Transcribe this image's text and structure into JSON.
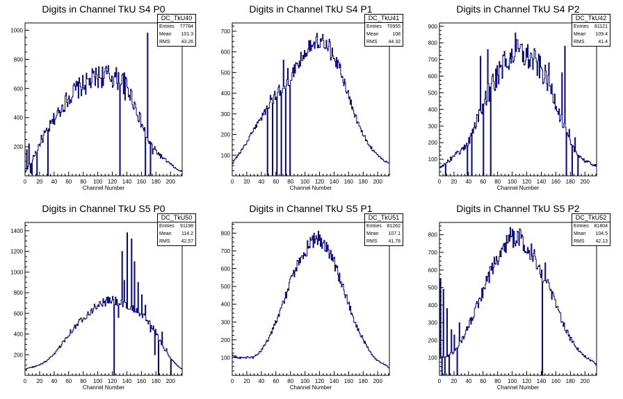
{
  "figure": {
    "background": "#ffffff",
    "line_color": "#000080",
    "stat_labels": {
      "entries": "Entries",
      "mean": "Mean",
      "rms": "RMS"
    }
  },
  "chart_data": [
    {
      "type": "histogram",
      "title": "Digits in Channel TkU S4 P0",
      "xlabel": "Channel Number",
      "ylabel": "",
      "xlim": [
        0,
        216
      ],
      "ylim": [
        0,
        1050
      ],
      "xticks": [
        0,
        20,
        40,
        60,
        80,
        100,
        120,
        140,
        160,
        180,
        200
      ],
      "yticks": [
        200,
        400,
        600,
        800,
        1000
      ],
      "stats": {
        "name": "DC_TkU40",
        "entries": "77784",
        "mean": "101.3",
        "rms": "43.26"
      },
      "shape": {
        "type": "arch",
        "x": [
          0,
          10,
          20,
          30,
          40,
          50,
          60,
          70,
          80,
          90,
          100,
          110,
          120,
          130,
          140,
          150,
          160,
          170,
          180,
          190,
          200,
          210,
          216
        ],
        "y": [
          20,
          110,
          220,
          300,
          390,
          470,
          540,
          590,
          620,
          650,
          680,
          690,
          680,
          660,
          620,
          500,
          360,
          240,
          170,
          120,
          80,
          40,
          30
        ]
      },
      "overrides": [
        {
          "x": 2,
          "y": 180
        },
        {
          "x": 5,
          "y": 220
        },
        {
          "x": 7,
          "y": 20
        },
        {
          "x": 9,
          "y": 10
        },
        {
          "x": 16,
          "y": 0
        },
        {
          "x": 22,
          "y": 280
        },
        {
          "x": 26,
          "y": 310
        },
        {
          "x": 31,
          "y": 0
        },
        {
          "x": 47,
          "y": 450
        },
        {
          "x": 130,
          "y": 0
        },
        {
          "x": 137,
          "y": 520
        },
        {
          "x": 165,
          "y": 0
        },
        {
          "x": 168,
          "y": 980
        },
        {
          "x": 172,
          "y": 0
        },
        {
          "x": 175,
          "y": 150
        }
      ],
      "noise": 0.12
    },
    {
      "type": "histogram",
      "title": "Digits in Channel TkU S4 P1",
      "xlabel": "Channel Number",
      "ylabel": "",
      "xlim": [
        0,
        216
      ],
      "ylim": [
        0,
        740
      ],
      "xticks": [
        0,
        20,
        40,
        60,
        80,
        100,
        120,
        140,
        160,
        180,
        200
      ],
      "yticks": [
        100,
        200,
        300,
        400,
        500,
        600,
        700
      ],
      "stats": {
        "name": "DC_TkU41",
        "entries": "70955",
        "mean": "108",
        "rms": "44.32"
      },
      "shape": {
        "type": "arch",
        "x": [
          0,
          10,
          20,
          30,
          40,
          50,
          60,
          70,
          80,
          90,
          100,
          110,
          120,
          130,
          140,
          150,
          160,
          170,
          180,
          190,
          200,
          210,
          216
        ],
        "y": [
          60,
          110,
          160,
          230,
          280,
          340,
          390,
          430,
          470,
          540,
          600,
          640,
          660,
          650,
          580,
          500,
          390,
          280,
          200,
          140,
          100,
          70,
          60
        ]
      },
      "overrides": [
        {
          "x": 48,
          "y": 0
        },
        {
          "x": 52,
          "y": 390
        },
        {
          "x": 55,
          "y": 0
        },
        {
          "x": 58,
          "y": 410
        },
        {
          "x": 61,
          "y": 0
        },
        {
          "x": 64,
          "y": 440
        },
        {
          "x": 67,
          "y": 0
        },
        {
          "x": 70,
          "y": 560
        },
        {
          "x": 73,
          "y": 0
        },
        {
          "x": 76,
          "y": 520
        },
        {
          "x": 79,
          "y": 0
        },
        {
          "x": 82,
          "y": 500
        },
        {
          "x": 116,
          "y": 690
        },
        {
          "x": 124,
          "y": 685
        },
        {
          "x": 135,
          "y": 560
        }
      ],
      "noise": 0.06
    },
    {
      "type": "histogram",
      "title": "Digits in Channel TkU S4 P2",
      "xlabel": "Channel Number",
      "ylabel": "",
      "xlim": [
        0,
        216
      ],
      "ylim": [
        0,
        920
      ],
      "xticks": [
        0,
        20,
        40,
        60,
        80,
        100,
        120,
        140,
        160,
        180,
        200
      ],
      "yticks": [
        100,
        200,
        300,
        400,
        500,
        600,
        700,
        800,
        900
      ],
      "stats": {
        "name": "DC_TkU42",
        "entries": "81121",
        "mean": "109.4",
        "rms": "41.4"
      },
      "shape": {
        "type": "arch",
        "x": [
          0,
          10,
          20,
          30,
          40,
          50,
          60,
          70,
          80,
          90,
          100,
          110,
          120,
          130,
          140,
          150,
          160,
          170,
          180,
          190,
          200,
          210,
          216
        ],
        "y": [
          50,
          80,
          120,
          150,
          200,
          320,
          430,
          520,
          610,
          680,
          730,
          740,
          720,
          690,
          640,
          560,
          450,
          300,
          190,
          130,
          90,
          70,
          60
        ]
      },
      "overrides": [
        {
          "x": 8,
          "y": 0
        },
        {
          "x": 38,
          "y": 0
        },
        {
          "x": 44,
          "y": 0
        },
        {
          "x": 56,
          "y": 720
        },
        {
          "x": 60,
          "y": 0
        },
        {
          "x": 66,
          "y": 760
        },
        {
          "x": 70,
          "y": 0
        },
        {
          "x": 104,
          "y": 860
        },
        {
          "x": 111,
          "y": 790
        },
        {
          "x": 150,
          "y": 680
        },
        {
          "x": 168,
          "y": 620
        },
        {
          "x": 172,
          "y": 780
        },
        {
          "x": 174,
          "y": 0
        },
        {
          "x": 178,
          "y": 280
        },
        {
          "x": 182,
          "y": 0
        },
        {
          "x": 186,
          "y": 230
        },
        {
          "x": 190,
          "y": 0
        }
      ],
      "noise": 0.12
    },
    {
      "type": "histogram",
      "title": "Digits in Channel TkU S5 P0",
      "xlabel": "Channel Number",
      "ylabel": "",
      "xlim": [
        0,
        216
      ],
      "ylim": [
        0,
        1480
      ],
      "xticks": [
        0,
        20,
        40,
        60,
        80,
        100,
        120,
        140,
        160,
        180,
        200
      ],
      "yticks": [
        200,
        400,
        600,
        800,
        1000,
        1200,
        1400
      ],
      "stats": {
        "name": "DC_TkU50",
        "entries": "91198",
        "mean": "114.2",
        "rms": "42.57"
      },
      "shape": {
        "type": "arch",
        "x": [
          0,
          10,
          20,
          30,
          40,
          50,
          60,
          70,
          80,
          90,
          100,
          110,
          120,
          130,
          140,
          150,
          160,
          170,
          180,
          190,
          200,
          210,
          216
        ],
        "y": [
          60,
          80,
          100,
          140,
          200,
          300,
          400,
          480,
          560,
          620,
          680,
          710,
          730,
          700,
          660,
          640,
          600,
          520,
          420,
          280,
          160,
          90,
          60
        ]
      },
      "overrides": [
        {
          "x": 122,
          "y": 0
        },
        {
          "x": 128,
          "y": 560
        },
        {
          "x": 133,
          "y": 1200
        },
        {
          "x": 136,
          "y": 920
        },
        {
          "x": 140,
          "y": 1380
        },
        {
          "x": 143,
          "y": 640
        },
        {
          "x": 146,
          "y": 1320
        },
        {
          "x": 150,
          "y": 1100
        },
        {
          "x": 155,
          "y": 900
        },
        {
          "x": 160,
          "y": 780
        },
        {
          "x": 165,
          "y": 680
        },
        {
          "x": 172,
          "y": 420
        },
        {
          "x": 178,
          "y": 200
        },
        {
          "x": 183,
          "y": 0
        },
        {
          "x": 188,
          "y": 420
        },
        {
          "x": 194,
          "y": 260
        },
        {
          "x": 200,
          "y": 0
        }
      ],
      "noise": 0.06
    },
    {
      "type": "histogram",
      "title": "Digits in Channel TkU S5 P1",
      "xlabel": "Channel Number",
      "ylabel": "",
      "xlim": [
        0,
        216
      ],
      "ylim": [
        0,
        860
      ],
      "xticks": [
        0,
        20,
        40,
        60,
        80,
        100,
        120,
        140,
        160,
        180,
        200
      ],
      "yticks": [
        100,
        200,
        300,
        400,
        500,
        600,
        700,
        800
      ],
      "stats": {
        "name": "DC_TkU51",
        "entries": "81262",
        "mean": "107.1",
        "rms": "41.78"
      },
      "shape": {
        "type": "arch",
        "x": [
          0,
          10,
          20,
          30,
          40,
          50,
          60,
          70,
          80,
          90,
          100,
          110,
          120,
          130,
          140,
          150,
          160,
          170,
          180,
          190,
          200,
          210,
          216
        ],
        "y": [
          110,
          100,
          100,
          100,
          140,
          210,
          300,
          410,
          520,
          620,
          700,
          750,
          770,
          730,
          640,
          520,
          400,
          290,
          200,
          130,
          80,
          60,
          40
        ]
      },
      "overrides": [
        {
          "x": 112,
          "y": 800
        },
        {
          "x": 120,
          "y": 790
        }
      ],
      "noise": 0.06
    },
    {
      "type": "histogram",
      "title": "Digits in Channel TkU S5 P2",
      "xlabel": "Channel Number",
      "ylabel": "",
      "xlim": [
        0,
        216
      ],
      "ylim": [
        0,
        870
      ],
      "xticks": [
        0,
        20,
        40,
        60,
        80,
        100,
        120,
        140,
        160,
        180,
        200
      ],
      "yticks": [
        100,
        200,
        300,
        400,
        500,
        600,
        700,
        800
      ],
      "stats": {
        "name": "DC_TkU52",
        "entries": "81804",
        "mean": "104.5",
        "rms": "42.13"
      },
      "shape": {
        "type": "arch",
        "x": [
          0,
          10,
          20,
          30,
          40,
          50,
          60,
          70,
          80,
          90,
          100,
          110,
          120,
          130,
          140,
          150,
          160,
          170,
          180,
          190,
          200,
          210,
          216
        ],
        "y": [
          100,
          110,
          130,
          190,
          280,
          380,
          480,
          580,
          680,
          750,
          790,
          780,
          740,
          680,
          600,
          500,
          400,
          300,
          210,
          150,
          110,
          80,
          60
        ]
      },
      "overrides": [
        {
          "x": 1,
          "y": 550
        },
        {
          "x": 3,
          "y": 0
        },
        {
          "x": 5,
          "y": 490
        },
        {
          "x": 7,
          "y": 0
        },
        {
          "x": 10,
          "y": 380
        },
        {
          "x": 13,
          "y": 0
        },
        {
          "x": 16,
          "y": 260
        },
        {
          "x": 20,
          "y": 230
        },
        {
          "x": 24,
          "y": 0
        },
        {
          "x": 27,
          "y": 300
        },
        {
          "x": 102,
          "y": 820
        },
        {
          "x": 108,
          "y": 815
        },
        {
          "x": 141,
          "y": 0
        },
        {
          "x": 145,
          "y": 640
        }
      ],
      "noise": 0.08
    }
  ]
}
